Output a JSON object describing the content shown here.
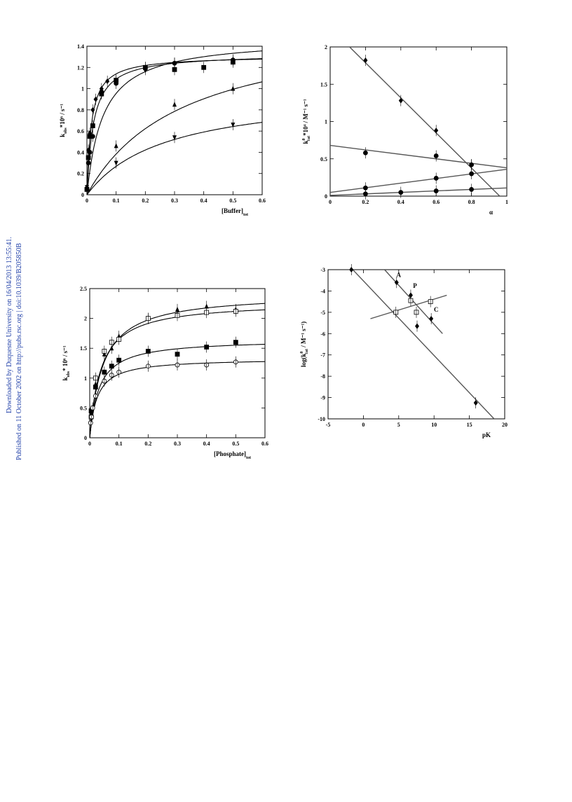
{
  "side_text": {
    "line1": "Downloaded by Duquesne University on 16/04/2013 13:55:41.",
    "line2": "Published on 11 October 2002 on http://pubs.rsc.org | doi:10.1039/B205850B"
  },
  "chart_data": [
    {
      "type": "scatter",
      "xlabel": "[Buffer]",
      "xlabel_sub": "tot",
      "ylabel": "k",
      "ylabel_sub": "obs",
      "ylabel_rest": "*10⁶ / s⁻¹",
      "xlim": [
        0,
        0.6
      ],
      "ylim": [
        0,
        1.4
      ],
      "xticks": [
        "0",
        "0.1",
        "0.2",
        "0.3",
        "0.4",
        "0.5",
        "0.6"
      ],
      "yticks": [
        "0",
        "0.2",
        "0.4",
        "0.6",
        "0.8",
        "1",
        "1.2",
        "1.4"
      ],
      "series": [
        {
          "marker": "square",
          "points": [
            [
              0.0,
              0.05
            ],
            [
              0.005,
              0.35
            ],
            [
              0.01,
              0.55
            ],
            [
              0.02,
              0.65
            ],
            [
              0.05,
              0.95
            ],
            [
              0.1,
              1.08
            ],
            [
              0.2,
              1.2
            ],
            [
              0.3,
              1.18
            ],
            [
              0.4,
              1.2
            ],
            [
              0.5,
              1.25
            ]
          ],
          "curve": {
            "vmax": 1.33,
            "k": 0.022
          }
        },
        {
          "marker": "diamond",
          "points": [
            [
              0.005,
              0.42
            ],
            [
              0.01,
              0.58
            ],
            [
              0.02,
              0.8
            ],
            [
              0.03,
              0.9
            ],
            [
              0.05,
              1.0
            ],
            [
              0.07,
              1.07
            ],
            [
              0.1,
              1.08
            ],
            [
              0.2,
              1.18
            ],
            [
              0.3,
              1.24
            ],
            [
              0.5,
              1.27
            ]
          ],
          "curve": {
            "vmax": 1.31,
            "k": 0.015
          }
        },
        {
          "marker": "circle",
          "points": [
            [
              0.005,
              0.3
            ],
            [
              0.01,
              0.4
            ],
            [
              0.02,
              0.55
            ],
            [
              0.05,
              0.97
            ],
            [
              0.1,
              1.05
            ],
            [
              0.2,
              1.2
            ],
            [
              0.3,
              1.24
            ],
            [
              0.5,
              1.27
            ]
          ],
          "curve": {
            "vmax": 1.48,
            "k": 0.055
          }
        },
        {
          "marker": "triangle",
          "points": [
            [
              0.0,
              0.08
            ],
            [
              0.1,
              0.46
            ],
            [
              0.3,
              0.85
            ],
            [
              0.5,
              1.0
            ]
          ],
          "curve": {
            "vmax": 1.65,
            "k": 0.33
          }
        },
        {
          "marker": "triangle-down",
          "points": [
            [
              0.0,
              0.07
            ],
            [
              0.1,
              0.3
            ],
            [
              0.3,
              0.54
            ],
            [
              0.5,
              0.66
            ]
          ],
          "curve": {
            "vmax": 0.99,
            "k": 0.27
          }
        }
      ]
    },
    {
      "type": "scatter",
      "xlabel": "α",
      "ylabel": "k",
      "ylabel_sub": "cat",
      "ylabel_sup": "0",
      "ylabel_rest": "*10⁴ / M⁻¹ s⁻¹",
      "xlim": [
        0,
        1
      ],
      "ylim": [
        0,
        2
      ],
      "xticks": [
        "0",
        "0.2",
        "0.4",
        "0.6",
        "0.8",
        "1"
      ],
      "yticks": [
        "0",
        "0.5",
        "1",
        "1.5",
        "2"
      ],
      "series": [
        {
          "marker": "diamond",
          "points": [
            [
              0.2,
              1.82
            ],
            [
              0.4,
              1.28
            ],
            [
              0.6,
              0.88
            ],
            [
              0.8,
              0.42
            ]
          ],
          "line": [
            [
              0.11,
              2.0
            ],
            [
              0.96,
              0.0
            ]
          ]
        },
        {
          "marker": "circle",
          "points": [
            [
              0.2,
              0.58
            ],
            [
              0.6,
              0.54
            ],
            [
              0.8,
              0.42
            ]
          ],
          "line": [
            [
              0.0,
              0.68
            ],
            [
              1.0,
              0.38
            ]
          ]
        },
        {
          "marker": "circle",
          "points": [
            [
              0.2,
              0.11
            ],
            [
              0.6,
              0.24
            ],
            [
              0.8,
              0.3
            ]
          ],
          "line": [
            [
              0.0,
              0.05
            ],
            [
              1.0,
              0.36
            ]
          ]
        },
        {
          "marker": "circle",
          "points": [
            [
              0.2,
              0.03
            ],
            [
              0.4,
              0.05
            ],
            [
              0.6,
              0.07
            ],
            [
              0.8,
              0.09
            ]
          ],
          "line": [
            [
              0.0,
              0.01
            ],
            [
              1.0,
              0.11
            ]
          ]
        }
      ]
    },
    {
      "type": "scatter",
      "xlabel": "[Phosphate]",
      "xlabel_sub": "tot",
      "ylabel": "k",
      "ylabel_sub": "obs",
      "ylabel_rest": "* 10⁶ / s⁻¹",
      "xlim": [
        0,
        0.6
      ],
      "ylim": [
        0,
        2.5
      ],
      "xticks": [
        "0",
        "0.1",
        "0.2",
        "0.3",
        "0.4",
        "0.5",
        "0.6"
      ],
      "yticks": [
        "0",
        "0.5",
        "1",
        "1.5",
        "2",
        "2.5"
      ],
      "series": [
        {
          "marker": "triangle",
          "points": [
            [
              0.005,
              0.4
            ],
            [
              0.02,
              0.9
            ],
            [
              0.05,
              1.4
            ],
            [
              0.075,
              1.5
            ],
            [
              0.1,
              1.7
            ],
            [
              0.2,
              2.0
            ],
            [
              0.3,
              2.15
            ],
            [
              0.4,
              2.2
            ],
            [
              0.5,
              2.15
            ]
          ],
          "curve": {
            "vmax": 2.42,
            "k": 0.045
          }
        },
        {
          "marker": "open-square",
          "points": [
            [
              0.005,
              0.35
            ],
            [
              0.02,
              1.0
            ],
            [
              0.05,
              1.45
            ],
            [
              0.075,
              1.6
            ],
            [
              0.1,
              1.65
            ],
            [
              0.2,
              2.0
            ],
            [
              0.3,
              2.05
            ],
            [
              0.4,
              2.1
            ],
            [
              0.5,
              2.12
            ]
          ],
          "curve": {
            "vmax": 2.28,
            "k": 0.038
          }
        },
        {
          "marker": "square",
          "points": [
            [
              0.005,
              0.45
            ],
            [
              0.02,
              0.85
            ],
            [
              0.05,
              1.1
            ],
            [
              0.075,
              1.2
            ],
            [
              0.1,
              1.3
            ],
            [
              0.2,
              1.45
            ],
            [
              0.3,
              1.4
            ],
            [
              0.4,
              1.52
            ],
            [
              0.5,
              1.6
            ]
          ],
          "curve": {
            "vmax": 1.65,
            "k": 0.032
          }
        },
        {
          "marker": "open-circle",
          "points": [
            [
              0.003,
              0.25
            ],
            [
              0.006,
              0.35
            ],
            [
              0.01,
              0.5
            ],
            [
              0.02,
              0.7
            ],
            [
              0.05,
              0.95
            ],
            [
              0.075,
              1.05
            ],
            [
              0.1,
              1.1
            ],
            [
              0.2,
              1.2
            ],
            [
              0.3,
              1.22
            ],
            [
              0.4,
              1.22
            ],
            [
              0.5,
              1.27
            ]
          ],
          "curve": {
            "vmax": 1.33,
            "k": 0.025
          }
        }
      ]
    },
    {
      "type": "scatter",
      "xlabel": "pK",
      "ylabel": "log(k",
      "ylabel_sub": "cat",
      "ylabel_sup": "0",
      "ylabel_rest": " / M⁻¹ s⁻¹)",
      "xlim": [
        -5,
        20
      ],
      "ylim": [
        -10,
        -3
      ],
      "xticks": [
        "-5",
        "0",
        "5",
        "10",
        "15",
        "20"
      ],
      "yticks": [
        "-10",
        "-9",
        "-8",
        "-7",
        "-6",
        "-5",
        "-4",
        "-3"
      ],
      "annotations": [
        {
          "text": "A",
          "x": 5.0,
          "y": -3.35
        },
        {
          "text": "P",
          "x": 7.3,
          "y": -3.85
        },
        {
          "text": "C",
          "x": 10.3,
          "y": -4.98
        }
      ],
      "series": [
        {
          "marker": "diamond",
          "points": [
            [
              -1.7,
              -3.0
            ],
            [
              4.7,
              -3.6
            ],
            [
              6.7,
              -4.2
            ],
            [
              7.6,
              -5.65
            ],
            [
              9.6,
              -5.3
            ],
            [
              15.9,
              -9.25
            ]
          ],
          "line": [
            [
              -1.5,
              -3.0
            ],
            [
              18.5,
              -10.0
            ]
          ]
        },
        {
          "marker": "diamond",
          "points": [],
          "line": [
            [
              3.0,
              -3.0
            ],
            [
              11.2,
              -6.0
            ]
          ]
        },
        {
          "marker": "open-square",
          "points": [
            [
              4.6,
              -5.0
            ],
            [
              7.5,
              -5.0
            ],
            [
              9.5,
              -4.5
            ],
            [
              6.7,
              -4.45
            ]
          ],
          "line": [
            [
              1.0,
              -5.3
            ],
            [
              11.8,
              -4.2
            ]
          ]
        }
      ]
    }
  ]
}
